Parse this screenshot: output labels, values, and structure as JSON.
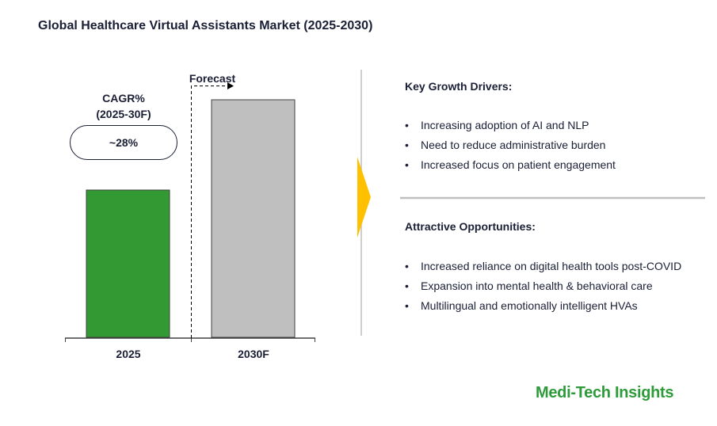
{
  "title": "Global Healthcare Virtual Assistants Market (2025-2030)",
  "chart_data": {
    "type": "bar",
    "categories": [
      "2025",
      "2030F"
    ],
    "values": [
      62,
      100
    ],
    "colors": [
      "#339933",
      "#bfbfbf"
    ],
    "forecast_label": "Forecast",
    "cagr_label_line1": "CAGR%",
    "cagr_label_line2": "(2025-30F)",
    "cagr_value": "~28%",
    "grid": false
  },
  "drivers": {
    "title": "Key Growth Drivers:",
    "items": [
      "Increasing adoption of AI and NLP",
      "Need to reduce administrative burden",
      "Increased focus on patient engagement"
    ]
  },
  "opportunities": {
    "title": "Attractive Opportunities:",
    "items": [
      "Increased reliance on digital health tools post-COVID",
      "Expansion into mental health & behavioral care",
      "Multilingual and emotionally intelligent HVAs"
    ]
  },
  "logo": "Medi-Tech Insights",
  "accent_arrow_color": "#ffc000"
}
